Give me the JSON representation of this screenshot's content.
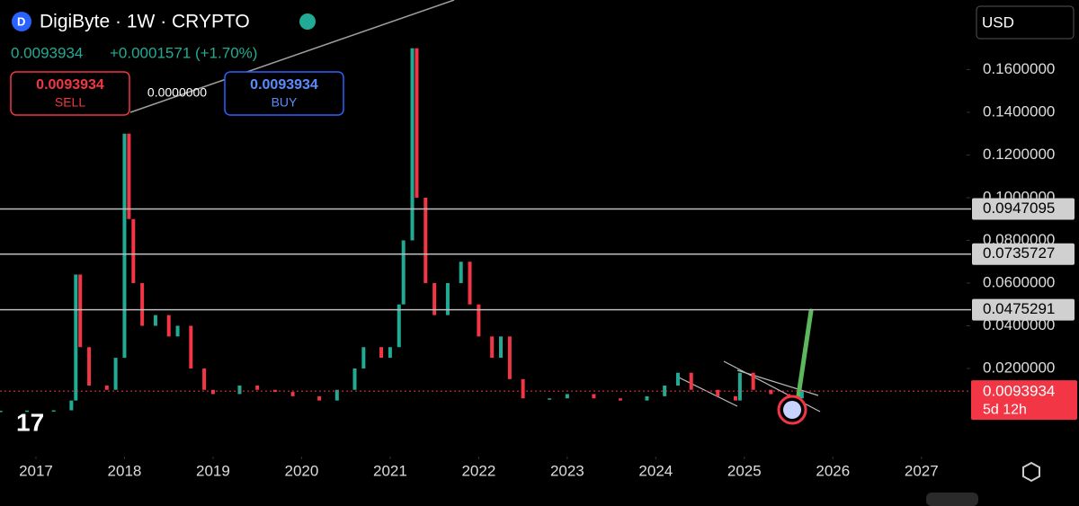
{
  "header": {
    "title": "DigiByte · 1W · CRYPTO",
    "price": "0.0093934",
    "change": "+0.0001571 (+1.70%)"
  },
  "trade": {
    "sell_price": "0.0093934",
    "sell_label": "SELL",
    "spread": "0.0000000",
    "buy_price": "0.0093934",
    "buy_label": "BUY"
  },
  "currency": "USD",
  "chart_data": {
    "type": "candles",
    "x": [
      2016.6,
      2016.9,
      2017.2,
      2017.4,
      2017.45,
      2017.5,
      2017.6,
      2017.8,
      2017.9,
      2018.0,
      2018.05,
      2018.1,
      2018.2,
      2018.35,
      2018.5,
      2018.6,
      2018.75,
      2018.9,
      2019.0,
      2019.3,
      2019.5,
      2019.7,
      2019.9,
      2020.2,
      2020.4,
      2020.6,
      2020.7,
      2020.9,
      2021.0,
      2021.1,
      2021.15,
      2021.25,
      2021.3,
      2021.4,
      2021.5,
      2021.65,
      2021.8,
      2021.9,
      2022.0,
      2022.15,
      2022.25,
      2022.35,
      2022.5,
      2022.8,
      2023.0,
      2023.3,
      2023.6,
      2023.9,
      2024.1,
      2024.25,
      2024.4,
      2024.7,
      2024.9,
      2024.95,
      2025.1,
      2025.3,
      2025.5,
      2025.65
    ],
    "values": [
      0.0002,
      0.0003,
      0.0004,
      0.005,
      0.064,
      0.03,
      0.012,
      0.01,
      0.025,
      0.13,
      0.09,
      0.06,
      0.04,
      0.045,
      0.035,
      0.04,
      0.02,
      0.01,
      0.008,
      0.012,
      0.01,
      0.009,
      0.007,
      0.005,
      0.01,
      0.02,
      0.03,
      0.025,
      0.03,
      0.05,
      0.08,
      0.17,
      0.1,
      0.06,
      0.045,
      0.06,
      0.07,
      0.05,
      0.035,
      0.025,
      0.035,
      0.015,
      0.006,
      0.006,
      0.008,
      0.006,
      0.005,
      0.007,
      0.012,
      0.018,
      0.01,
      0.007,
      0.005,
      0.018,
      0.01,
      0.008,
      0.006,
      0.0094
    ],
    "up_color": "#22ab94",
    "down_color": "#f23645",
    "xlim": [
      2016.594,
      2027.51
    ],
    "ylim": [
      -0.02,
      0.1926
    ],
    "xticks": [
      2017,
      2018,
      2019,
      2020,
      2021,
      2022,
      2023,
      2024,
      2025,
      2026,
      2027
    ],
    "yticks": [
      {
        "value": 0.02,
        "label": "0.0200000"
      },
      {
        "value": 0.04,
        "label": "0.0400000"
      },
      {
        "value": 0.06,
        "label": "0.0600000"
      },
      {
        "value": 0.08,
        "label": "0.0800000"
      },
      {
        "value": 0.1,
        "label": "0.1000000"
      },
      {
        "value": 0.12,
        "label": "0.1200000"
      },
      {
        "value": 0.14,
        "label": "0.1400000"
      },
      {
        "value": 0.16,
        "label": "0.1600000"
      }
    ],
    "levels": [
      0.0947095,
      0.0735727,
      0.0475291
    ],
    "level_color": "#bdbdbd",
    "current": {
      "value": 0.0093934,
      "countdown": "5d 12h",
      "color": "#f23645"
    }
  }
}
